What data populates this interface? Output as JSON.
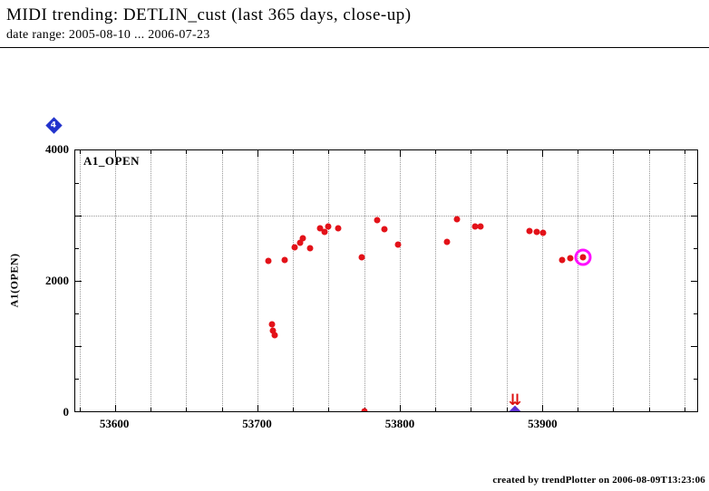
{
  "header": {
    "title": "MIDI trending: DETLIN_cust (last 365 days, close-up)",
    "subtitle": "date range: 2005-08-10 ... 2006-07-23"
  },
  "badge": {
    "label": "4"
  },
  "footer": {
    "credit": "created by trendPlotter on 2006-08-09T13:23:06"
  },
  "chart_data": {
    "type": "scatter",
    "series_label": "A1_OPEN",
    "ylabel": "A1(OPEN)",
    "xlim": [
      53572,
      54009
    ],
    "ylim": [
      0,
      4000
    ],
    "x_ticks_major": [
      53600,
      53700,
      53800,
      53900
    ],
    "y_ticks_labeled": [
      0,
      2000,
      4000
    ],
    "y_ticks_minor": [
      1000,
      3000
    ],
    "grid_x_interval": 25,
    "hline_y": 3000,
    "points": [
      [
        53708,
        2300
      ],
      [
        53710,
        1340
      ],
      [
        53711,
        1230
      ],
      [
        53712,
        1165
      ],
      [
        53719,
        2320
      ],
      [
        53726,
        2520
      ],
      [
        53730,
        2590
      ],
      [
        53732,
        2650
      ],
      [
        53737,
        2500
      ],
      [
        53744,
        2800
      ],
      [
        53747,
        2750
      ],
      [
        53750,
        2830
      ],
      [
        53757,
        2810
      ],
      [
        53773,
        2360
      ],
      [
        53775,
        0
      ],
      [
        53784,
        2925
      ],
      [
        53789,
        2790
      ],
      [
        53799,
        2555
      ],
      [
        53833,
        2595
      ],
      [
        53840,
        2940
      ],
      [
        53853,
        2830
      ],
      [
        53857,
        2840
      ],
      [
        53891,
        2760
      ],
      [
        53896,
        2745
      ],
      [
        53901,
        2730
      ],
      [
        53914,
        2320
      ],
      [
        53920,
        2345
      ]
    ],
    "highlight_point": [
      53929,
      2360
    ],
    "annotation": {
      "arrow_symbol": "⇊",
      "arrow_x": 53881,
      "marker_x": 53881,
      "marker_y": 0
    },
    "colors": {
      "point": "#e31219",
      "highlight_ring": "#ff10ff",
      "grid": "#999999",
      "arrow": "#dd1111",
      "bottom_marker": "#5b2fd0",
      "badge": "#2233cc"
    }
  }
}
